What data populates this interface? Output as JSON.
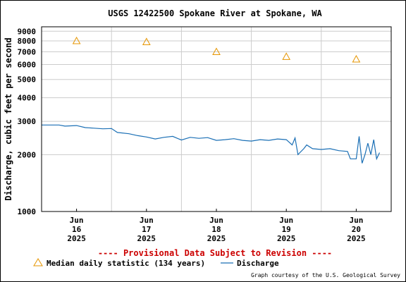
{
  "chart_data": {
    "type": "line",
    "title": "USGS 12422500 Spokane River at Spokane, WA",
    "ylabel": "Discharge, cubic feet per second",
    "xlabel": "",
    "y_scale": "log",
    "ylim": [
      1000,
      9500
    ],
    "y_ticks": [
      1000,
      2000,
      3000,
      4000,
      5000,
      6000,
      7000,
      8000,
      9000
    ],
    "y_tick_labels": [
      "1000",
      "2000",
      "3000",
      "4000",
      "5000",
      "6000",
      "7000",
      "8000",
      "9000"
    ],
    "xlim": [
      "2025-06-15T12:00",
      "2025-06-20T12:00"
    ],
    "x_ticks": [
      {
        "date": "2025-06-16",
        "line1": "Jun",
        "line2": "16",
        "line3": "2025"
      },
      {
        "date": "2025-06-17",
        "line1": "Jun",
        "line2": "17",
        "line3": "2025"
      },
      {
        "date": "2025-06-18",
        "line1": "Jun",
        "line2": "18",
        "line3": "2025"
      },
      {
        "date": "2025-06-19",
        "line1": "Jun",
        "line2": "19",
        "line3": "2025"
      },
      {
        "date": "2025-06-20",
        "line1": "Jun",
        "line2": "20",
        "line3": "2025"
      }
    ],
    "grid": true,
    "series": [
      {
        "name": "Median daily statistic (134 years)",
        "marker": "triangle",
        "color": "#e69500",
        "x": [
          "2025-06-16T00:00",
          "2025-06-17T00:00",
          "2025-06-18T00:00",
          "2025-06-19T00:00",
          "2025-06-20T00:00"
        ],
        "y": [
          8000,
          7900,
          7000,
          6600,
          6400
        ]
      },
      {
        "name": "Discharge",
        "color": "#1a6fb5",
        "x": [
          "2025-06-15T12:00",
          "2025-06-15T18:00",
          "2025-06-15T20:00",
          "2025-06-16T00:00",
          "2025-06-16T03:00",
          "2025-06-16T06:00",
          "2025-06-16T09:00",
          "2025-06-16T12:00",
          "2025-06-16T14:00",
          "2025-06-16T18:00",
          "2025-06-16T21:00",
          "2025-06-17T00:00",
          "2025-06-17T03:00",
          "2025-06-17T06:00",
          "2025-06-17T09:00",
          "2025-06-17T12:00",
          "2025-06-17T15:00",
          "2025-06-17T18:00",
          "2025-06-17T21:00",
          "2025-06-18T00:00",
          "2025-06-18T03:00",
          "2025-06-18T06:00",
          "2025-06-18T09:00",
          "2025-06-18T12:00",
          "2025-06-18T15:00",
          "2025-06-18T18:00",
          "2025-06-18T21:00",
          "2025-06-19T00:00",
          "2025-06-19T02:00",
          "2025-06-19T03:00",
          "2025-06-19T04:00",
          "2025-06-19T06:00",
          "2025-06-19T07:00",
          "2025-06-19T09:00",
          "2025-06-19T12:00",
          "2025-06-19T15:00",
          "2025-06-19T18:00",
          "2025-06-19T21:00",
          "2025-06-19T22:00",
          "2025-06-20T00:00",
          "2025-06-20T01:00",
          "2025-06-20T02:00",
          "2025-06-20T03:00",
          "2025-06-20T04:00",
          "2025-06-20T05:00",
          "2025-06-20T06:00",
          "2025-06-20T07:00",
          "2025-06-20T08:00"
        ],
        "y": [
          2870,
          2870,
          2830,
          2850,
          2780,
          2760,
          2740,
          2750,
          2620,
          2580,
          2520,
          2480,
          2420,
          2470,
          2500,
          2390,
          2470,
          2440,
          2460,
          2380,
          2400,
          2430,
          2380,
          2360,
          2400,
          2380,
          2420,
          2400,
          2250,
          2450,
          2000,
          2150,
          2250,
          2150,
          2130,
          2150,
          2100,
          2080,
          1900,
          1900,
          2500,
          1800,
          2000,
          2300,
          2000,
          2400,
          1900,
          2050
        ]
      }
    ],
    "legend": [
      {
        "label": "Median daily statistic (134 years)",
        "symbol": "triangle"
      },
      {
        "label": "Discharge",
        "symbol": "line"
      }
    ],
    "annotation": "---- Provisional Data Subject to Revision ----",
    "credit": "Graph courtesy of the U.S. Geological Survey"
  }
}
